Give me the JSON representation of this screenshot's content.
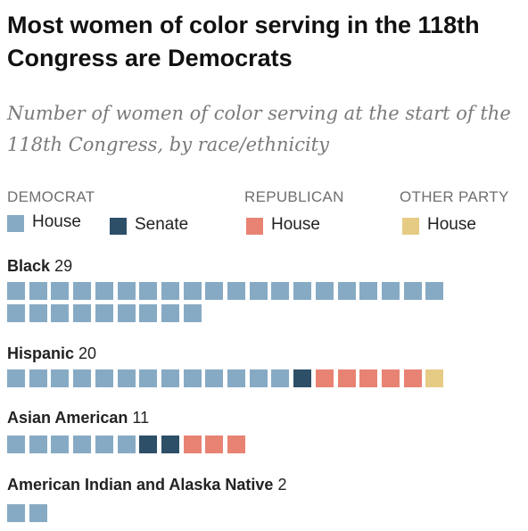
{
  "title": "Most women of color serving in the 118th Congress are Democrats",
  "subtitle": "Number of women of color serving at the start of the 118th Congress, by race/ethnicity",
  "legend": {
    "democrat_heading": "DEMOCRAT",
    "republican_heading": "REPUBLICAN",
    "other_heading": "OTHER PARTY",
    "dem_house": "House",
    "dem_senate": "Senate",
    "rep_house": "House",
    "other_house": "House"
  },
  "colors": {
    "dem_house": "#87aac4",
    "dem_senate": "#2d4f68",
    "rep_house": "#e88374",
    "other_house": "#e6cb85"
  },
  "chart_data": {
    "type": "waffle",
    "title": "Most women of color serving in the 118th Congress are Democrats",
    "subtitle": "Number of women of color serving at the start of the 118th Congress, by race/ethnicity",
    "series": [
      {
        "name": "Democrat House",
        "key": "dem_house"
      },
      {
        "name": "Democrat Senate",
        "key": "dem_senate"
      },
      {
        "name": "Republican House",
        "key": "rep_house"
      },
      {
        "name": "Other party House",
        "key": "other_house"
      }
    ],
    "groups": [
      {
        "name": "Black",
        "total": 29,
        "dem_house": 29,
        "dem_senate": 0,
        "rep_house": 0,
        "other_house": 0
      },
      {
        "name": "Hispanic",
        "total": 20,
        "dem_house": 13,
        "dem_senate": 1,
        "rep_house": 5,
        "other_house": 1
      },
      {
        "name": "Asian American",
        "total": 11,
        "dem_house": 6,
        "dem_senate": 2,
        "rep_house": 3,
        "other_house": 0
      },
      {
        "name": "American Indian and Alaska Native",
        "total": 2,
        "dem_house": 2,
        "dem_senate": 0,
        "rep_house": 0,
        "other_house": 0
      }
    ]
  }
}
